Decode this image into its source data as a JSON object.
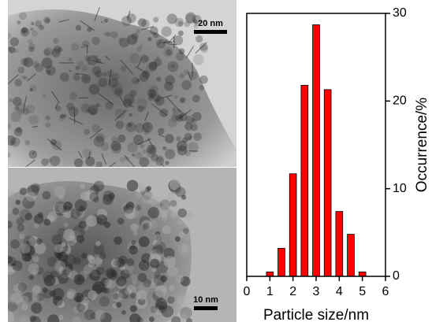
{
  "images": [
    {
      "scale_label": "20 nm"
    },
    {
      "scale_label": "10 nm"
    }
  ],
  "chart_data": {
    "type": "bar",
    "x_label": "Particle size/nm",
    "y_label": "Occurrence/%",
    "x": [
      1,
      1.5,
      2,
      2.5,
      3,
      3.5,
      4,
      4.5,
      5
    ],
    "values": [
      0.5,
      3.2,
      11.7,
      21.8,
      28.7,
      21.3,
      7.4,
      4.8,
      0.5
    ],
    "color": "#ff0000",
    "xlim": [
      0,
      6
    ],
    "xticks": [
      0,
      1,
      2,
      3,
      4,
      5,
      6
    ],
    "ylim": [
      0,
      30
    ],
    "yticks": [
      0,
      10,
      20,
      30
    ],
    "y_axis_side": "right"
  }
}
